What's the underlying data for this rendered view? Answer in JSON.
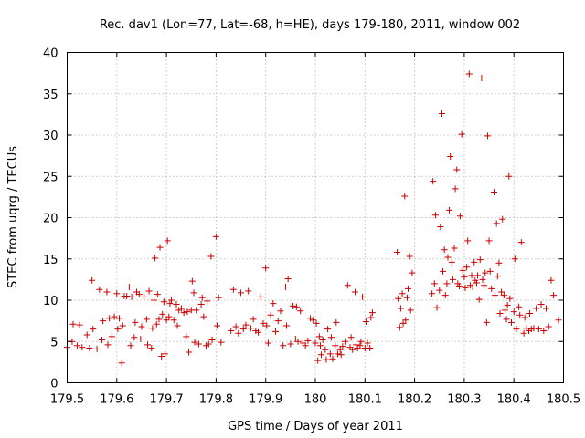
{
  "chart_data": {
    "type": "scatter",
    "title": "Rec. dav1 (Lon=77, Lat=-68, h=HE), days 179-180, 2011, window 002",
    "xlabel": "GPS time / Days of year 2011",
    "ylabel": "STEC from uqrg / TECUs",
    "xlim": [
      179.5,
      180.5
    ],
    "ylim": [
      0,
      40
    ],
    "xticks": [
      "179.5",
      "179.6",
      "179.7",
      "179.8",
      "179.9",
      "180",
      "180.1",
      "180.2",
      "180.3",
      "180.4",
      "180.5"
    ],
    "yticks": [
      "0",
      "5",
      "10",
      "15",
      "20",
      "25",
      "30",
      "35",
      "40"
    ],
    "grid": true,
    "marker_color": "#cc0000",
    "series": [
      {
        "points": [
          [
            179.5,
            4.3
          ],
          [
            179.51,
            5.0
          ],
          [
            179.512,
            7.1
          ],
          [
            179.52,
            4.5
          ],
          [
            179.525,
            7.0
          ],
          [
            179.53,
            4.3
          ],
          [
            179.54,
            5.8
          ],
          [
            179.545,
            4.2
          ],
          [
            179.55,
            12.4
          ],
          [
            179.552,
            6.5
          ],
          [
            179.56,
            4.1
          ],
          [
            179.565,
            11.3
          ],
          [
            179.57,
            5.2
          ],
          [
            179.572,
            7.5
          ],
          [
            179.58,
            11.0
          ],
          [
            179.582,
            4.6
          ],
          [
            179.585,
            7.8
          ],
          [
            179.59,
            5.6
          ],
          [
            179.595,
            8.0
          ],
          [
            179.6,
            10.8
          ],
          [
            179.602,
            6.5
          ],
          [
            179.605,
            7.8
          ],
          [
            179.61,
            2.4
          ],
          [
            179.612,
            6.9
          ],
          [
            179.615,
            10.5
          ],
          [
            179.62,
            10.5
          ],
          [
            179.625,
            11.6
          ],
          [
            179.628,
            4.5
          ],
          [
            179.63,
            10.4
          ],
          [
            179.635,
            5.5
          ],
          [
            179.637,
            7.3
          ],
          [
            179.64,
            11.0
          ],
          [
            179.645,
            10.7
          ],
          [
            179.648,
            5.3
          ],
          [
            179.65,
            6.8
          ],
          [
            179.655,
            10.4
          ],
          [
            179.66,
            7.7
          ],
          [
            179.662,
            4.6
          ],
          [
            179.665,
            11.1
          ],
          [
            179.67,
            4.2
          ],
          [
            179.672,
            6.6
          ],
          [
            179.675,
            10.0
          ],
          [
            179.677,
            15.1
          ],
          [
            179.68,
            7.1
          ],
          [
            179.682,
            10.7
          ],
          [
            179.685,
            7.7
          ],
          [
            179.687,
            16.4
          ],
          [
            179.69,
            3.2
          ],
          [
            179.692,
            8.3
          ],
          [
            179.695,
            9.8
          ],
          [
            179.697,
            3.5
          ],
          [
            179.7,
            7.6
          ],
          [
            179.702,
            17.2
          ],
          [
            179.705,
            8.0
          ],
          [
            179.707,
            9.6
          ],
          [
            179.71,
            10.0
          ],
          [
            179.715,
            7.6
          ],
          [
            179.72,
            9.5
          ],
          [
            179.722,
            6.9
          ],
          [
            179.725,
            8.8
          ],
          [
            179.73,
            9.0
          ],
          [
            179.735,
            8.5
          ],
          [
            179.74,
            5.6
          ],
          [
            179.742,
            8.6
          ],
          [
            179.745,
            3.7
          ],
          [
            179.75,
            8.8
          ],
          [
            179.752,
            12.3
          ],
          [
            179.755,
            10.9
          ],
          [
            179.757,
            4.9
          ],
          [
            179.76,
            8.8
          ],
          [
            179.765,
            4.7
          ],
          [
            179.77,
            9.5
          ],
          [
            179.772,
            10.3
          ],
          [
            179.775,
            8.0
          ],
          [
            179.78,
            4.5
          ],
          [
            179.782,
            9.9
          ],
          [
            179.785,
            4.7
          ],
          [
            179.79,
            15.3
          ],
          [
            179.792,
            5.2
          ],
          [
            179.8,
            17.7
          ],
          [
            179.802,
            6.9
          ],
          [
            179.805,
            10.3
          ],
          [
            179.81,
            4.9
          ],
          [
            179.83,
            6.3
          ],
          [
            179.835,
            11.3
          ],
          [
            179.84,
            6.8
          ],
          [
            179.845,
            6.0
          ],
          [
            179.85,
            10.9
          ],
          [
            179.855,
            6.5
          ],
          [
            179.86,
            7.0
          ],
          [
            179.865,
            11.1
          ],
          [
            179.87,
            6.6
          ],
          [
            179.875,
            7.7
          ],
          [
            179.88,
            6.3
          ],
          [
            179.885,
            6.1
          ],
          [
            179.89,
            10.4
          ],
          [
            179.895,
            7.2
          ],
          [
            179.9,
            13.9
          ],
          [
            179.902,
            6.9
          ],
          [
            179.905,
            4.8
          ],
          [
            179.91,
            8.2
          ],
          [
            179.915,
            9.6
          ],
          [
            179.92,
            6.2
          ],
          [
            179.925,
            7.5
          ],
          [
            179.93,
            8.7
          ],
          [
            179.935,
            4.5
          ],
          [
            179.94,
            11.6
          ],
          [
            179.942,
            6.9
          ],
          [
            179.945,
            12.6
          ],
          [
            179.95,
            4.7
          ],
          [
            179.955,
            9.3
          ],
          [
            179.96,
            5.3
          ],
          [
            179.962,
            9.2
          ],
          [
            179.965,
            5.0
          ],
          [
            179.97,
            8.7
          ],
          [
            179.975,
            4.8
          ],
          [
            179.98,
            4.5
          ],
          [
            179.985,
            5.1
          ],
          [
            179.99,
            7.8
          ],
          [
            179.995,
            7.6
          ],
          [
            180.0,
            4.8
          ],
          [
            180.002,
            7.2
          ],
          [
            180.005,
            2.7
          ],
          [
            180.008,
            5.6
          ],
          [
            180.01,
            4.5
          ],
          [
            180.012,
            3.4
          ],
          [
            180.015,
            5.2
          ],
          [
            180.02,
            4.0
          ],
          [
            180.022,
            2.8
          ],
          [
            180.025,
            6.5
          ],
          [
            180.03,
            3.5
          ],
          [
            180.032,
            5.5
          ],
          [
            180.035,
            2.9
          ],
          [
            180.04,
            4.5
          ],
          [
            180.042,
            7.3
          ],
          [
            180.045,
            3.5
          ],
          [
            180.05,
            4.0
          ],
          [
            180.052,
            3.4
          ],
          [
            180.055,
            4.4
          ],
          [
            180.06,
            5.0
          ],
          [
            180.065,
            11.8
          ],
          [
            180.07,
            4.3
          ],
          [
            180.072,
            5.5
          ],
          [
            180.075,
            4.0
          ],
          [
            180.08,
            11.0
          ],
          [
            180.082,
            4.6
          ],
          [
            180.085,
            4.2
          ],
          [
            180.09,
            4.5
          ],
          [
            180.092,
            5.0
          ],
          [
            180.095,
            10.4
          ],
          [
            180.1,
            4.2
          ],
          [
            180.102,
            7.4
          ],
          [
            180.105,
            4.8
          ],
          [
            180.11,
            4.2
          ],
          [
            180.112,
            7.9
          ],
          [
            180.115,
            8.5
          ],
          [
            180.165,
            15.8
          ],
          [
            180.167,
            10.2
          ],
          [
            180.17,
            6.7
          ],
          [
            180.172,
            9.0
          ],
          [
            180.175,
            10.8
          ],
          [
            180.177,
            7.2
          ],
          [
            180.18,
            22.6
          ],
          [
            180.182,
            7.6
          ],
          [
            180.185,
            10.3
          ],
          [
            180.187,
            11.4
          ],
          [
            180.19,
            15.3
          ],
          [
            180.192,
            8.8
          ],
          [
            180.195,
            13.3
          ],
          [
            180.235,
            10.8
          ],
          [
            180.237,
            24.4
          ],
          [
            180.24,
            12.0
          ],
          [
            180.242,
            20.3
          ],
          [
            180.245,
            9.1
          ],
          [
            180.25,
            11.2
          ],
          [
            180.252,
            18.9
          ],
          [
            180.255,
            32.6
          ],
          [
            180.257,
            13.5
          ],
          [
            180.26,
            16.1
          ],
          [
            180.262,
            10.6
          ],
          [
            180.265,
            12.0
          ],
          [
            180.267,
            15.2
          ],
          [
            180.27,
            20.9
          ],
          [
            180.272,
            27.4
          ],
          [
            180.275,
            14.6
          ],
          [
            180.277,
            12.5
          ],
          [
            180.28,
            16.3
          ],
          [
            180.282,
            23.5
          ],
          [
            180.285,
            25.8
          ],
          [
            180.287,
            12.0
          ],
          [
            180.29,
            11.7
          ],
          [
            180.292,
            20.2
          ],
          [
            180.295,
            30.1
          ],
          [
            180.297,
            13.6
          ],
          [
            180.3,
            12.8
          ],
          [
            180.302,
            11.5
          ],
          [
            180.305,
            14.0
          ],
          [
            180.307,
            17.2
          ],
          [
            180.31,
            37.4
          ],
          [
            180.312,
            11.8
          ],
          [
            180.315,
            13.0
          ],
          [
            180.317,
            11.6
          ],
          [
            180.32,
            14.6
          ],
          [
            180.322,
            12.4
          ],
          [
            180.325,
            12.1
          ],
          [
            180.327,
            13.0
          ],
          [
            180.33,
            10.1
          ],
          [
            180.332,
            14.9
          ],
          [
            180.335,
            36.9
          ],
          [
            180.337,
            12.5
          ],
          [
            180.34,
            11.8
          ],
          [
            180.342,
            13.3
          ],
          [
            180.345,
            7.3
          ],
          [
            180.347,
            29.9
          ],
          [
            180.35,
            17.2
          ],
          [
            180.352,
            13.5
          ],
          [
            180.355,
            11.4
          ],
          [
            180.36,
            23.1
          ],
          [
            180.362,
            10.6
          ],
          [
            180.365,
            19.3
          ],
          [
            180.367,
            12.9
          ],
          [
            180.37,
            14.5
          ],
          [
            180.372,
            8.4
          ],
          [
            180.375,
            11.0
          ],
          [
            180.377,
            19.8
          ],
          [
            180.38,
            10.6
          ],
          [
            180.382,
            8.8
          ],
          [
            180.385,
            7.7
          ],
          [
            180.387,
            9.4
          ],
          [
            180.39,
            25.0
          ],
          [
            180.392,
            10.2
          ],
          [
            180.395,
            7.3
          ],
          [
            180.4,
            8.6
          ],
          [
            180.402,
            15.0
          ],
          [
            180.405,
            6.5
          ],
          [
            180.41,
            9.2
          ],
          [
            180.412,
            8.2
          ],
          [
            180.415,
            17.0
          ],
          [
            180.42,
            6.0
          ],
          [
            180.422,
            7.9
          ],
          [
            180.425,
            6.6
          ],
          [
            180.43,
            6.3
          ],
          [
            180.432,
            8.4
          ],
          [
            180.435,
            6.5
          ],
          [
            180.44,
            6.6
          ],
          [
            180.445,
            9.0
          ],
          [
            180.45,
            6.5
          ],
          [
            180.455,
            9.5
          ],
          [
            180.46,
            6.3
          ],
          [
            180.465,
            9.0
          ],
          [
            180.47,
            6.8
          ],
          [
            180.475,
            12.4
          ],
          [
            180.48,
            10.6
          ],
          [
            180.49,
            7.6
          ]
        ]
      }
    ]
  }
}
